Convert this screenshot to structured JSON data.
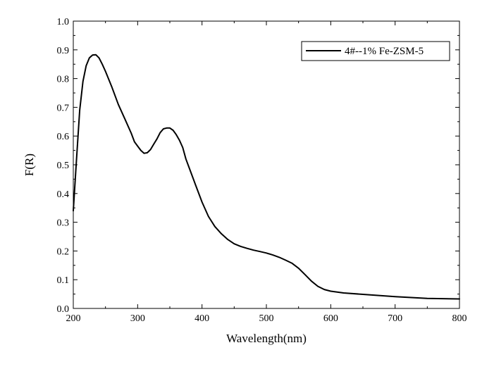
{
  "chart_data": {
    "type": "line",
    "xlabel": "Wavelength(nm)",
    "ylabel": "F(R)",
    "xlim": [
      200,
      800
    ],
    "ylim": [
      0.0,
      1.0
    ],
    "xticks": [
      200,
      300,
      400,
      500,
      600,
      700,
      800
    ],
    "xtick_labels": [
      "200",
      "300",
      "400",
      "500",
      "600",
      "700",
      "800"
    ],
    "yticks": [
      0.0,
      0.1,
      0.2,
      0.3,
      0.4,
      0.5,
      0.6,
      0.7,
      0.8,
      0.9,
      1.0
    ],
    "ytick_labels": [
      "0.0",
      "0.1",
      "0.2",
      "0.3",
      "0.4",
      "0.5",
      "0.6",
      "0.7",
      "0.8",
      "0.9",
      "1.0"
    ],
    "grid": false,
    "legend_position": "top-right",
    "series": [
      {
        "name": "4#--1% Fe-ZSM-5",
        "color": "#000000",
        "x": [
          200,
          205,
          210,
          215,
          220,
          225,
          230,
          235,
          240,
          245,
          250,
          260,
          270,
          280,
          290,
          295,
          300,
          305,
          310,
          315,
          320,
          325,
          330,
          335,
          340,
          345,
          350,
          355,
          360,
          365,
          370,
          375,
          380,
          390,
          400,
          410,
          420,
          430,
          440,
          450,
          460,
          470,
          480,
          490,
          500,
          510,
          520,
          530,
          540,
          550,
          560,
          570,
          580,
          590,
          600,
          620,
          650,
          700,
          750,
          800
        ],
        "y": [
          0.34,
          0.52,
          0.69,
          0.79,
          0.845,
          0.872,
          0.882,
          0.883,
          0.872,
          0.85,
          0.825,
          0.77,
          0.71,
          0.66,
          0.61,
          0.58,
          0.565,
          0.55,
          0.54,
          0.542,
          0.553,
          0.572,
          0.59,
          0.612,
          0.625,
          0.628,
          0.628,
          0.62,
          0.605,
          0.585,
          0.56,
          0.52,
          0.49,
          0.43,
          0.37,
          0.32,
          0.285,
          0.26,
          0.24,
          0.225,
          0.216,
          0.209,
          0.203,
          0.198,
          0.193,
          0.186,
          0.178,
          0.168,
          0.157,
          0.14,
          0.118,
          0.095,
          0.077,
          0.066,
          0.06,
          0.054,
          0.049,
          0.041,
          0.035,
          0.033
        ]
      }
    ]
  }
}
